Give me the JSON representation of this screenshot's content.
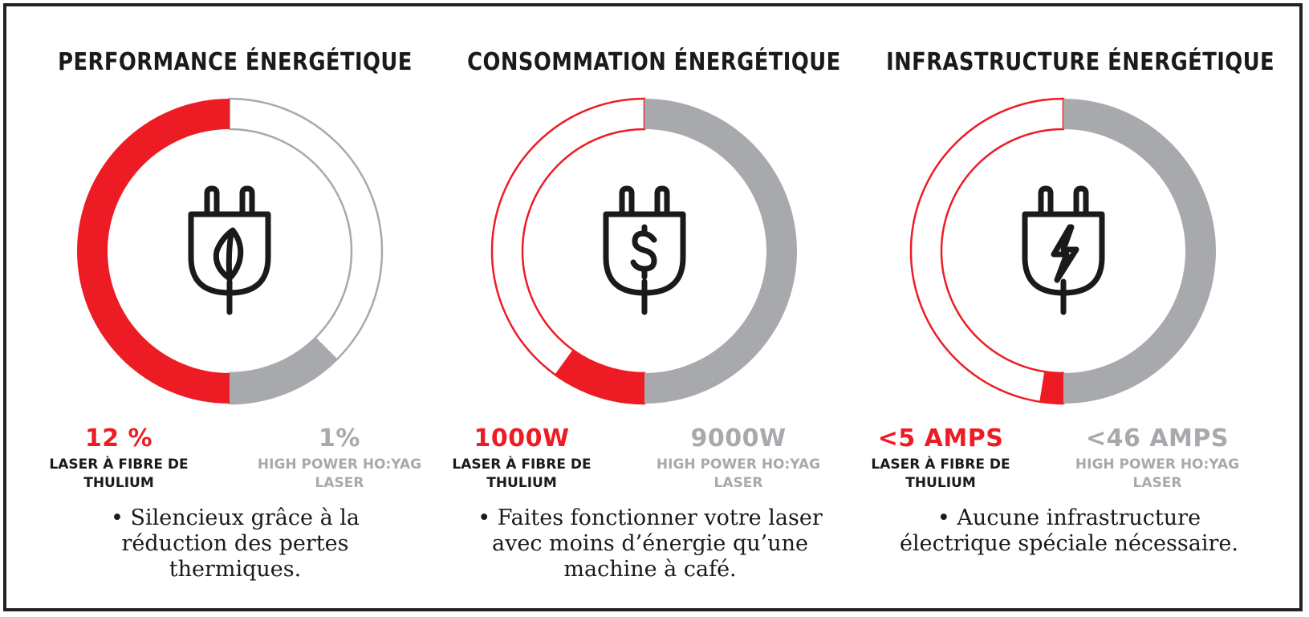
{
  "colors": {
    "red": "#ed1c24",
    "gray": "#a7a9ac",
    "gray_text": "#a7a9ac",
    "dark": "#1a1a1a"
  },
  "chart_data": [
    {
      "type": "donut",
      "title": "PERFORMANCE ÉNERGÉTIQUE",
      "icon": "plug-leaf-icon",
      "series": [
        {
          "name": "LASER À FIBRE DE THULIUM",
          "value": 12,
          "value_label": "12 %",
          "color": "#ed1c24",
          "fill_fraction": 1.0
        },
        {
          "name": "HIGH POWER HO:YAG LASER",
          "value": 1,
          "value_label": "1%",
          "color": "#a7a9ac",
          "fill_fraction": 0.25
        }
      ],
      "description": "• Silencieux grâce à la réduction des pertes thermiques."
    },
    {
      "type": "donut",
      "title": "CONSOMMATION ÉNERGÉTIQUE",
      "icon": "plug-dollar-icon",
      "series": [
        {
          "name": "LASER À FIBRE DE THULIUM",
          "value": 1000,
          "value_label": "1000W",
          "color": "#ed1c24",
          "fill_fraction": 0.2
        },
        {
          "name": "HIGH POWER HO:YAG LASER",
          "value": 9000,
          "value_label": "9000W",
          "color": "#a7a9ac",
          "fill_fraction": 1.0
        }
      ],
      "description": "• Faites fonctionner votre laser avec moins d’énergie qu’une machine à café."
    },
    {
      "type": "donut",
      "title": "INFRASTRUCTURE ÉNERGÉTIQUE",
      "icon": "plug-lightning-icon",
      "series": [
        {
          "name": "LASER À FIBRE DE THULIUM",
          "value": 5,
          "value_label": "<5 AMPS",
          "color": "#ed1c24",
          "fill_fraction": 0.05
        },
        {
          "name": "HIGH POWER HO:YAG LASER",
          "value": 46,
          "value_label": "<46 AMPS",
          "color": "#a7a9ac",
          "fill_fraction": 1.0
        }
      ],
      "description": "• Aucune infrastructure électrique spéciale nécessaire."
    }
  ]
}
